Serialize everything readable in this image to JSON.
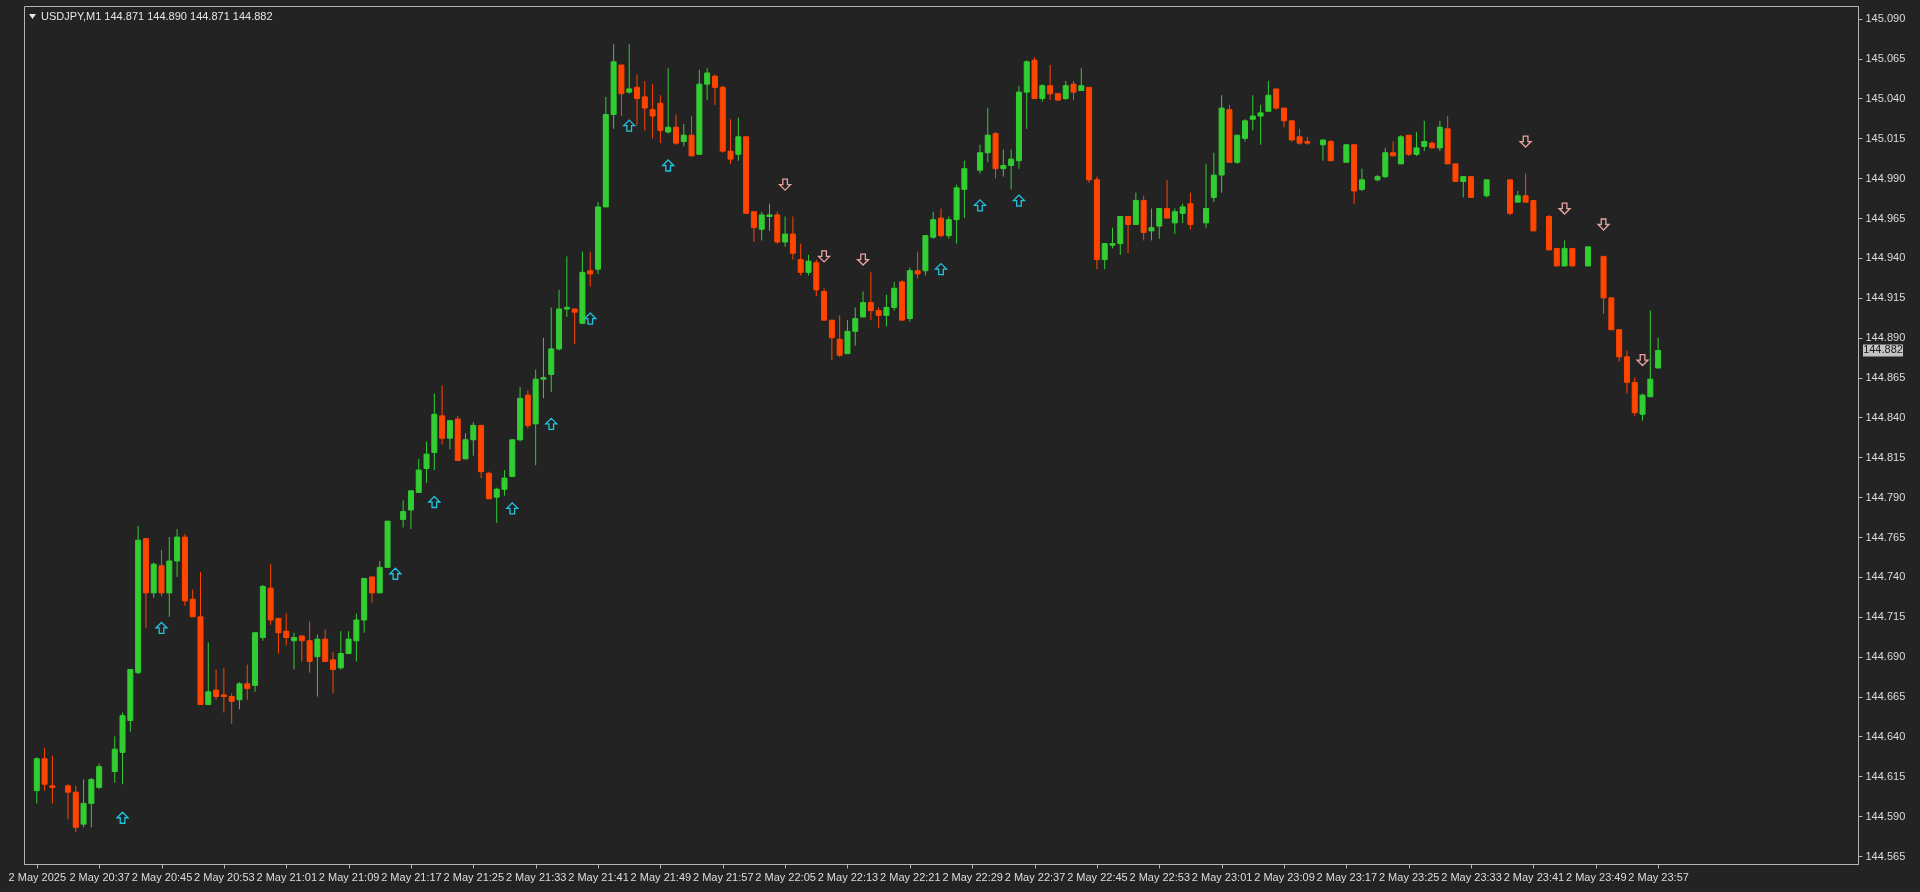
{
  "chart_data": {
    "type": "candlestick",
    "title": "USDJPY,M1 144.871 144.890 144.871 144.882",
    "x": [
      "2025-05-02T20:29",
      "2025-05-02T20:30",
      "2025-05-02T20:31",
      "2025-05-02T20:33",
      "2025-05-02T20:34",
      "2025-05-02T20:35",
      "2025-05-02T20:36",
      "2025-05-02T20:37",
      "2025-05-02T20:39",
      "2025-05-02T20:40",
      "2025-05-02T20:41",
      "2025-05-02T20:42",
      "2025-05-02T20:43",
      "2025-05-02T20:44",
      "2025-05-02T20:45",
      "2025-05-02T20:46",
      "2025-05-02T20:47",
      "2025-05-02T20:48",
      "2025-05-02T20:49",
      "2025-05-02T20:50",
      "2025-05-02T20:51",
      "2025-05-02T20:52",
      "2025-05-02T20:53",
      "2025-05-02T20:54",
      "2025-05-02T20:55",
      "2025-05-02T20:56",
      "2025-05-02T20:57",
      "2025-05-02T20:58",
      "2025-05-02T20:59",
      "2025-05-02T21:00",
      "2025-05-02T21:01",
      "2025-05-02T21:02",
      "2025-05-02T21:03",
      "2025-05-02T21:04",
      "2025-05-02T21:05",
      "2025-05-02T21:06",
      "2025-05-02T21:07",
      "2025-05-02T21:08",
      "2025-05-02T21:09",
      "2025-05-02T21:10",
      "2025-05-02T21:11",
      "2025-05-02T21:12",
      "2025-05-02T21:13",
      "2025-05-02T21:14",
      "2025-05-02T21:16",
      "2025-05-02T21:17",
      "2025-05-02T21:18",
      "2025-05-02T21:19",
      "2025-05-02T21:20",
      "2025-05-02T21:21",
      "2025-05-02T21:22",
      "2025-05-02T21:23",
      "2025-05-02T21:24",
      "2025-05-02T21:25",
      "2025-05-02T21:26",
      "2025-05-02T21:27",
      "2025-05-02T21:28",
      "2025-05-02T21:29",
      "2025-05-02T21:30",
      "2025-05-02T21:31",
      "2025-05-02T21:32",
      "2025-05-02T21:33",
      "2025-05-02T21:34",
      "2025-05-02T21:35",
      "2025-05-02T21:36",
      "2025-05-02T21:37",
      "2025-05-02T21:38",
      "2025-05-02T21:39",
      "2025-05-02T21:40",
      "2025-05-02T21:41",
      "2025-05-02T21:42",
      "2025-05-02T21:43",
      "2025-05-02T21:44",
      "2025-05-02T21:45",
      "2025-05-02T21:46",
      "2025-05-02T21:47",
      "2025-05-02T21:48",
      "2025-05-02T21:49",
      "2025-05-02T21:50",
      "2025-05-02T21:51",
      "2025-05-02T21:52",
      "2025-05-02T21:53",
      "2025-05-02T21:54",
      "2025-05-02T21:55",
      "2025-05-02T21:56",
      "2025-05-02T21:57",
      "2025-05-02T21:58",
      "2025-05-02T21:59",
      "2025-05-02T22:00",
      "2025-05-02T22:01",
      "2025-05-02T22:02",
      "2025-05-02T22:03",
      "2025-05-02T22:04",
      "2025-05-02T22:05",
      "2025-05-02T22:06",
      "2025-05-02T22:07",
      "2025-05-02T22:08",
      "2025-05-02T22:09",
      "2025-05-02T22:10",
      "2025-05-02T22:11",
      "2025-05-02T22:12",
      "2025-05-02T22:13",
      "2025-05-02T22:14",
      "2025-05-02T22:15",
      "2025-05-02T22:16",
      "2025-05-02T22:17",
      "2025-05-02T22:18",
      "2025-05-02T22:19",
      "2025-05-02T22:20",
      "2025-05-02T22:21",
      "2025-05-02T22:22",
      "2025-05-02T22:23",
      "2025-05-02T22:24",
      "2025-05-02T22:25",
      "2025-05-02T22:26",
      "2025-05-02T22:27",
      "2025-05-02T22:28",
      "2025-05-02T22:30",
      "2025-05-02T22:31",
      "2025-05-02T22:32",
      "2025-05-02T22:33",
      "2025-05-02T22:34",
      "2025-05-02T22:35",
      "2025-05-02T22:36",
      "2025-05-02T22:37",
      "2025-05-02T22:38",
      "2025-05-02T22:39",
      "2025-05-02T22:40",
      "2025-05-02T22:41",
      "2025-05-02T22:42",
      "2025-05-02T22:43",
      "2025-05-02T22:44",
      "2025-05-02T22:45",
      "2025-05-02T22:46",
      "2025-05-02T22:47",
      "2025-05-02T22:48",
      "2025-05-02T22:49",
      "2025-05-02T22:50",
      "2025-05-02T22:51",
      "2025-05-02T22:52",
      "2025-05-02T22:53",
      "2025-05-02T22:54",
      "2025-05-02T22:55",
      "2025-05-02T22:56",
      "2025-05-02T22:57",
      "2025-05-02T22:59",
      "2025-05-02T23:00",
      "2025-05-02T23:01",
      "2025-05-02T23:02",
      "2025-05-02T23:03",
      "2025-05-02T23:04",
      "2025-05-02T23:05",
      "2025-05-02T23:06",
      "2025-05-02T23:07",
      "2025-05-02T23:08",
      "2025-05-02T23:09",
      "2025-05-02T23:10",
      "2025-05-02T23:11",
      "2025-05-02T23:12",
      "2025-05-02T23:14",
      "2025-05-02T23:15",
      "2025-05-02T23:17",
      "2025-05-02T23:18",
      "2025-05-02T23:19",
      "2025-05-02T23:21",
      "2025-05-02T23:22",
      "2025-05-02T23:23",
      "2025-05-02T23:24",
      "2025-05-02T23:25",
      "2025-05-02T23:26",
      "2025-05-02T23:27",
      "2025-05-02T23:28",
      "2025-05-02T23:29",
      "2025-05-02T23:30",
      "2025-05-02T23:31",
      "2025-05-02T23:32",
      "2025-05-02T23:33",
      "2025-05-02T23:35",
      "2025-05-02T23:38",
      "2025-05-02T23:39",
      "2025-05-02T23:40",
      "2025-05-02T23:41",
      "2025-05-02T23:43",
      "2025-05-02T23:44",
      "2025-05-02T23:45",
      "2025-05-02T23:46",
      "2025-05-02T23:48",
      "2025-05-02T23:50",
      "2025-05-02T23:51",
      "2025-05-02T23:52",
      "2025-05-02T23:53",
      "2025-05-02T23:54",
      "2025-05-02T23:55",
      "2025-05-02T23:56",
      "2025-05-02T23:57"
    ],
    "ohlc": [
      [
        144.606,
        144.627,
        144.598,
        144.626
      ],
      [
        144.626,
        144.633,
        144.606,
        144.61
      ],
      [
        144.609,
        144.628,
        144.598,
        144.608
      ],
      [
        144.609,
        144.61,
        144.588,
        144.605
      ],
      [
        144.605,
        144.609,
        144.58,
        144.583
      ],
      [
        144.585,
        144.613,
        144.583,
        144.598
      ],
      [
        144.598,
        144.614,
        144.583,
        144.613
      ],
      [
        144.608,
        144.623,
        144.607,
        144.621
      ],
      [
        144.618,
        144.64,
        144.611,
        144.632
      ],
      [
        144.63,
        144.655,
        144.61,
        144.653
      ],
      [
        144.65,
        144.682,
        144.643,
        144.682
      ],
      [
        144.68,
        144.772,
        144.679,
        144.763
      ],
      [
        144.764,
        144.764,
        144.708,
        144.73
      ],
      [
        144.73,
        144.749,
        144.727,
        144.748
      ],
      [
        144.747,
        144.757,
        144.728,
        144.73
      ],
      [
        144.73,
        144.765,
        144.715,
        144.75
      ],
      [
        144.75,
        144.77,
        144.74,
        144.765
      ],
      [
        144.765,
        144.767,
        144.722,
        144.725
      ],
      [
        144.726,
        144.732,
        144.715,
        144.715
      ],
      [
        144.715,
        144.743,
        144.66,
        144.66
      ],
      [
        144.66,
        144.699,
        144.66,
        144.668
      ],
      [
        144.669,
        144.682,
        144.663,
        144.665
      ],
      [
        144.666,
        144.683,
        144.655,
        144.665
      ],
      [
        144.665,
        144.667,
        144.648,
        144.662
      ],
      [
        144.663,
        144.674,
        144.657,
        144.673
      ],
      [
        144.673,
        144.685,
        144.663,
        144.67
      ],
      [
        144.672,
        144.705,
        144.668,
        144.705
      ],
      [
        144.702,
        144.735,
        144.7,
        144.734
      ],
      [
        144.733,
        144.748,
        144.71,
        144.713
      ],
      [
        144.714,
        144.714,
        144.692,
        144.705
      ],
      [
        144.706,
        144.717,
        144.697,
        144.702
      ],
      [
        144.7,
        144.705,
        144.682,
        144.702
      ],
      [
        144.703,
        144.703,
        144.687,
        144.7
      ],
      [
        144.7,
        144.712,
        144.68,
        144.687
      ],
      [
        144.69,
        144.704,
        144.665,
        144.701
      ],
      [
        144.701,
        144.707,
        144.687,
        144.687
      ],
      [
        144.688,
        144.693,
        144.667,
        144.682
      ],
      [
        144.683,
        144.706,
        144.682,
        144.692
      ],
      [
        144.692,
        144.706,
        144.692,
        144.701
      ],
      [
        144.7,
        144.717,
        144.687,
        144.713
      ],
      [
        144.713,
        144.739,
        144.705,
        144.739
      ],
      [
        144.74,
        144.74,
        144.724,
        144.73
      ],
      [
        144.73,
        144.75,
        144.73,
        144.746
      ],
      [
        144.746,
        144.775,
        144.746,
        144.775
      ],
      [
        144.776,
        144.788,
        144.771,
        144.781
      ],
      [
        144.782,
        144.794,
        144.77,
        144.794
      ],
      [
        144.793,
        144.814,
        144.793,
        144.807
      ],
      [
        144.808,
        144.825,
        144.799,
        144.817
      ],
      [
        144.818,
        144.855,
        144.807,
        144.842
      ],
      [
        144.841,
        144.86,
        144.823,
        144.827
      ],
      [
        144.827,
        144.838,
        144.82,
        144.838
      ],
      [
        144.839,
        144.841,
        144.813,
        144.813
      ],
      [
        144.814,
        144.83,
        144.814,
        144.826
      ],
      [
        144.826,
        144.837,
        144.816,
        144.835
      ],
      [
        144.835,
        144.835,
        144.802,
        144.806
      ],
      [
        144.805,
        144.806,
        144.789,
        144.789
      ],
      [
        144.79,
        144.796,
        144.774,
        144.795
      ],
      [
        144.795,
        144.807,
        144.791,
        144.802
      ],
      [
        144.803,
        144.826,
        144.803,
        144.826
      ],
      [
        144.826,
        144.859,
        144.825,
        144.852
      ],
      [
        144.854,
        144.857,
        144.833,
        144.835
      ],
      [
        144.836,
        144.87,
        144.81,
        144.864
      ],
      [
        144.864,
        144.89,
        144.852,
        144.865
      ],
      [
        144.867,
        144.909,
        144.856,
        144.883
      ],
      [
        144.883,
        144.92,
        144.882,
        144.908
      ],
      [
        144.908,
        144.941,
        144.903,
        144.909
      ],
      [
        144.908,
        144.908,
        144.886,
        144.906
      ],
      [
        144.899,
        144.944,
        144.899,
        144.931
      ],
      [
        144.932,
        144.944,
        144.922,
        144.93
      ],
      [
        144.933,
        144.975,
        144.93,
        144.972
      ],
      [
        144.972,
        145.041,
        144.972,
        145.03
      ],
      [
        145.03,
        145.074,
        145.021,
        145.063
      ],
      [
        145.061,
        145.061,
        145.029,
        145.043
      ],
      [
        145.044,
        145.074,
        145.043,
        145.046
      ],
      [
        145.047,
        145.055,
        145.023,
        145.04
      ],
      [
        145.041,
        145.051,
        145.02,
        145.034
      ],
      [
        145.033,
        145.049,
        145.015,
        145.029
      ],
      [
        145.037,
        145.042,
        145.012,
        145.02
      ],
      [
        145.019,
        145.059,
        145.018,
        145.022
      ],
      [
        145.022,
        145.03,
        145.011,
        145.012
      ],
      [
        145.013,
        145.024,
        145.01,
        145.017
      ],
      [
        145.017,
        145.029,
        145.004,
        145.004
      ],
      [
        145.005,
        145.058,
        145.005,
        145.049
      ],
      [
        145.049,
        145.059,
        145.039,
        145.056
      ],
      [
        145.054,
        145.055,
        145.036,
        145.047
      ],
      [
        145.047,
        145.048,
        145.006,
        145.007
      ],
      [
        145.007,
        145.027,
        144.999,
        145.002
      ],
      [
        145.005,
        145.028,
        145.001,
        145.016
      ],
      [
        145.016,
        145.016,
        144.968,
        144.968
      ],
      [
        144.969,
        144.969,
        144.95,
        144.959
      ],
      [
        144.958,
        144.969,
        144.951,
        144.967
      ],
      [
        144.966,
        144.974,
        144.957,
        144.967
      ],
      [
        144.967,
        144.969,
        144.949,
        144.95
      ],
      [
        144.95,
        144.966,
        144.947,
        144.955
      ],
      [
        144.955,
        144.966,
        144.939,
        144.943
      ],
      [
        144.939,
        144.949,
        144.929,
        144.931
      ],
      [
        144.931,
        144.942,
        144.929,
        144.938
      ],
      [
        144.937,
        144.939,
        144.916,
        144.92
      ],
      [
        144.919,
        144.921,
        144.901,
        144.901
      ],
      [
        144.901,
        144.901,
        144.876,
        144.89
      ],
      [
        144.889,
        144.904,
        144.878,
        144.879
      ],
      [
        144.88,
        144.901,
        144.88,
        144.894
      ],
      [
        144.894,
        144.909,
        144.885,
        144.902
      ],
      [
        144.903,
        144.919,
        144.903,
        144.912
      ],
      [
        144.912,
        144.931,
        144.901,
        144.907
      ],
      [
        144.907,
        144.909,
        144.896,
        144.904
      ],
      [
        144.904,
        144.917,
        144.897,
        144.909
      ],
      [
        144.909,
        144.925,
        144.907,
        144.921
      ],
      [
        144.925,
        144.926,
        144.901,
        144.901
      ],
      [
        144.902,
        144.934,
        144.9,
        144.932
      ],
      [
        144.932,
        144.944,
        144.927,
        144.93
      ],
      [
        144.932,
        144.954,
        144.929,
        144.954
      ],
      [
        144.953,
        144.969,
        144.952,
        144.964
      ],
      [
        144.965,
        144.971,
        144.953,
        144.954
      ],
      [
        144.954,
        144.966,
        144.952,
        144.964
      ],
      [
        144.964,
        144.986,
        144.949,
        144.984
      ],
      [
        144.983,
        145.001,
        144.965,
        144.996
      ],
      [
        144.995,
        145.011,
        144.993,
        145.006
      ],
      [
        145.006,
        145.034,
        145.0,
        145.017
      ],
      [
        145.018,
        145.019,
        144.99,
        144.996
      ],
      [
        144.996,
        145.008,
        144.991,
        144.998
      ],
      [
        144.998,
        145.008,
        144.983,
        145.002
      ],
      [
        145.001,
        145.048,
        144.996,
        145.044
      ],
      [
        145.044,
        145.064,
        145.021,
        145.063
      ],
      [
        145.064,
        145.066,
        145.04,
        145.04
      ],
      [
        145.04,
        145.049,
        145.038,
        145.048
      ],
      [
        145.048,
        145.061,
        145.039,
        145.043
      ],
      [
        145.043,
        145.043,
        145.039,
        145.039
      ],
      [
        145.04,
        145.051,
        145.039,
        145.048
      ],
      [
        145.049,
        145.051,
        145.039,
        145.044
      ],
      [
        145.045,
        145.059,
        145.045,
        145.048
      ],
      [
        145.047,
        145.047,
        144.987,
        144.989
      ],
      [
        144.989,
        144.991,
        144.933,
        144.939
      ],
      [
        144.939,
        144.949,
        144.933,
        144.949
      ],
      [
        144.948,
        144.959,
        144.946,
        144.949
      ],
      [
        144.949,
        144.966,
        144.942,
        144.966
      ],
      [
        144.966,
        144.966,
        144.943,
        144.961
      ],
      [
        144.961,
        144.981,
        144.961,
        144.976
      ],
      [
        144.976,
        144.979,
        144.951,
        144.956
      ],
      [
        144.957,
        144.971,
        144.951,
        144.959
      ],
      [
        144.96,
        144.971,
        144.952,
        144.971
      ],
      [
        144.971,
        144.989,
        144.965,
        144.965
      ],
      [
        144.962,
        144.971,
        144.955,
        144.969
      ],
      [
        144.968,
        144.974,
        144.962,
        144.972
      ],
      [
        144.974,
        144.981,
        144.958,
        144.961
      ],
      [
        144.962,
        144.999,
        144.959,
        144.971
      ],
      [
        144.978,
        145.006,
        144.975,
        144.992
      ],
      [
        144.992,
        145.042,
        144.981,
        145.034
      ],
      [
        145.033,
        145.036,
        145.0,
        145.0
      ],
      [
        145.0,
        145.017,
        144.999,
        145.017
      ],
      [
        145.015,
        145.027,
        145.013,
        145.026
      ],
      [
        145.027,
        145.042,
        145.02,
        145.029
      ],
      [
        145.029,
        145.036,
        145.011,
        145.031
      ],
      [
        145.032,
        145.051,
        145.032,
        145.042
      ],
      [
        145.046,
        145.046,
        145.033,
        145.034
      ],
      [
        145.034,
        145.034,
        145.022,
        145.026
      ],
      [
        145.026,
        145.026,
        145.013,
        145.014
      ],
      [
        145.016,
        145.021,
        145.011,
        145.012
      ],
      [
        145.013,
        145.016,
        145.011,
        145.012
      ],
      [
        145.011,
        145.014,
        145.001,
        145.014
      ],
      [
        145.013,
        145.014,
        145.001,
        145.001
      ],
      [
        145.0,
        145.011,
        145.0,
        145.011
      ],
      [
        145.011,
        145.011,
        144.974,
        144.982
      ],
      [
        144.983,
        144.996,
        144.982,
        144.989
      ],
      [
        144.989,
        144.992,
        144.988,
        144.991
      ],
      [
        144.991,
        145.009,
        144.99,
        145.006
      ],
      [
        145.006,
        145.013,
        145.004,
        145.004
      ],
      [
        144.999,
        145.017,
        144.999,
        145.016
      ],
      [
        145.017,
        145.017,
        145.004,
        145.005
      ],
      [
        145.005,
        145.019,
        145.004,
        145.009
      ],
      [
        145.01,
        145.026,
        145.007,
        145.013
      ],
      [
        145.012,
        145.013,
        145.009,
        145.009
      ],
      [
        145.009,
        145.026,
        145.007,
        145.022
      ],
      [
        145.021,
        145.029,
        144.999,
        144.999
      ],
      [
        144.999,
        144.999,
        144.988,
        144.988
      ],
      [
        144.988,
        144.991,
        144.978,
        144.991
      ],
      [
        144.991,
        144.991,
        144.978,
        144.978
      ],
      [
        144.979,
        144.989,
        144.978,
        144.989
      ],
      [
        144.989,
        144.989,
        144.967,
        144.968
      ],
      [
        144.975,
        144.982,
        144.975,
        144.979
      ],
      [
        144.979,
        144.993,
        144.975,
        144.975
      ],
      [
        144.976,
        144.976,
        144.957,
        144.957
      ],
      [
        144.966,
        144.967,
        144.945,
        144.945
      ],
      [
        144.946,
        144.946,
        144.935,
        144.935
      ],
      [
        144.935,
        144.951,
        144.935,
        144.946
      ],
      [
        144.946,
        144.946,
        144.935,
        144.935
      ],
      [
        144.935,
        144.947,
        144.935,
        144.947
      ],
      [
        144.941,
        144.941,
        144.905,
        144.915
      ],
      [
        144.915,
        144.915,
        144.895,
        144.895
      ],
      [
        144.895,
        144.895,
        144.875,
        144.878
      ],
      [
        144.878,
        144.882,
        144.855,
        144.862
      ],
      [
        144.862,
        144.865,
        144.841,
        144.843
      ],
      [
        144.842,
        144.855,
        144.838,
        144.854
      ],
      [
        144.853,
        144.907,
        144.853,
        144.864
      ],
      [
        144.871,
        144.89,
        144.871,
        144.882
      ]
    ],
    "colors": [
      "#32cd32",
      "#ff4500",
      "#ff4500",
      "#ff4500",
      "#ff4500",
      "#32cd32",
      "#32cd32",
      "#32cd32",
      "#32cd32",
      "#32cd32",
      "#32cd32",
      "#32cd32",
      "#ff4500",
      "#32cd32",
      "#ff4500",
      "#32cd32",
      "#32cd32",
      "#ff4500",
      "#ff4500",
      "#ff4500",
      "#32cd32",
      "#ff4500",
      "#ff4500",
      "#ff4500",
      "#32cd32",
      "#ff4500",
      "#32cd32",
      "#32cd32",
      "#ff4500",
      "#ff4500",
      "#ff4500",
      "#32cd32",
      "#ff4500",
      "#ff4500",
      "#32cd32",
      "#ff4500",
      "#ff4500",
      "#32cd32",
      "#32cd32",
      "#32cd32",
      "#32cd32",
      "#ff4500",
      "#32cd32",
      "#32cd32",
      "#32cd32",
      "#32cd32",
      "#32cd32",
      "#32cd32",
      "#32cd32",
      "#ff4500",
      "#32cd32",
      "#ff4500",
      "#32cd32",
      "#32cd32",
      "#ff4500",
      "#ff4500",
      "#32cd32",
      "#32cd32",
      "#32cd32",
      "#32cd32",
      "#ff4500",
      "#32cd32",
      "#32cd32",
      "#32cd32",
      "#32cd32",
      "#32cd32",
      "#ff4500",
      "#32cd32",
      "#ff4500",
      "#32cd32",
      "#32cd32",
      "#32cd32",
      "#ff4500",
      "#32cd32",
      "#ff4500",
      "#ff4500",
      "#ff4500",
      "#ff4500",
      "#32cd32",
      "#ff4500",
      "#32cd32",
      "#ff4500",
      "#32cd32",
      "#32cd32",
      "#ff4500",
      "#ff4500",
      "#ff4500",
      "#32cd32",
      "#ff4500",
      "#ff4500",
      "#32cd32",
      "#32cd32",
      "#ff4500",
      "#32cd32",
      "#ff4500",
      "#ff4500",
      "#32cd32",
      "#ff4500",
      "#ff4500",
      "#ff4500",
      "#ff4500",
      "#32cd32",
      "#32cd32",
      "#32cd32",
      "#ff4500",
      "#ff4500",
      "#32cd32",
      "#32cd32",
      "#ff4500",
      "#32cd32",
      "#ff4500",
      "#32cd32",
      "#32cd32",
      "#ff4500",
      "#32cd32",
      "#32cd32",
      "#32cd32",
      "#32cd32",
      "#32cd32",
      "#ff4500",
      "#32cd32",
      "#32cd32",
      "#32cd32",
      "#32cd32",
      "#ff4500",
      "#32cd32",
      "#ff4500",
      "#ff4500",
      "#32cd32",
      "#ff4500",
      "#32cd32",
      "#ff4500",
      "#ff4500",
      "#32cd32",
      "#32cd32",
      "#32cd32",
      "#ff4500",
      "#32cd32",
      "#ff4500",
      "#32cd32",
      "#32cd32",
      "#ff4500",
      "#32cd32",
      "#32cd32",
      "#ff4500",
      "#32cd32",
      "#32cd32",
      "#32cd32",
      "#ff4500",
      "#32cd32",
      "#32cd32",
      "#32cd32",
      "#32cd32",
      "#32cd32",
      "#ff4500",
      "#ff4500",
      "#ff4500",
      "#ff4500",
      "#ff4500",
      "#32cd32",
      "#ff4500",
      "#32cd32",
      "#ff4500",
      "#32cd32",
      "#32cd32",
      "#32cd32",
      "#ff4500",
      "#32cd32",
      "#ff4500",
      "#32cd32",
      "#32cd32",
      "#ff4500",
      "#32cd32",
      "#ff4500",
      "#ff4500",
      "#32cd32",
      "#ff4500",
      "#32cd32",
      "#ff4500",
      "#32cd32",
      "#ff4500",
      "#ff4500",
      "#ff4500",
      "#ff4500",
      "#32cd32",
      "#ff4500",
      "#32cd32",
      "#ff4500",
      "#ff4500",
      "#ff4500",
      "#ff4500",
      "#ff4500",
      "#32cd32",
      "#32cd32",
      "#32cd32"
    ],
    "series": [
      {
        "type": "scatter",
        "color": "#22c4e0",
        "marker": "triangle",
        "x": [
          "2025-05-02T20:40",
          "2025-05-02T20:45",
          "2025-05-02T21:15",
          "2025-05-02T21:20",
          "2025-05-02T21:30",
          "2025-05-02T21:35",
          "2025-05-02T21:40",
          "2025-05-02T21:45",
          "2025-05-02T21:50",
          "2025-05-02T22:25",
          "2025-05-02T22:30",
          "2025-05-02T22:35"
        ],
        "values": [
          144.589,
          144.708,
          144.742,
          144.787,
          144.783,
          144.836,
          144.902,
          145.023,
          144.998,
          144.933,
          144.973,
          144.976
        ]
      },
      {
        "type": "scatter",
        "color": "#e8a49e",
        "marker": "triangle-down",
        "x": [
          "2025-05-02T22:05",
          "2025-05-02T22:10",
          "2025-05-02T22:15",
          "2025-05-02T23:40",
          "2025-05-02T23:45",
          "2025-05-02T23:50",
          "2025-05-02T23:55"
        ],
        "values": [
          144.986,
          144.941,
          144.939,
          145.013,
          144.971,
          144.961,
          144.876
        ]
      }
    ],
    "annotations": [
      "144.882"
    ],
    "xlim": [
      "2025-05-02T20:28",
      "2025-05-03T00:22"
    ],
    "xticks": [
      {
        "value": "2025-05-02T20:29",
        "label": "2 May 2025"
      },
      {
        "value": "2025-05-02T20:37",
        "label": "2 May 20:37"
      },
      {
        "value": "2025-05-02T20:45",
        "label": "2 May 20:45"
      },
      {
        "value": "2025-05-02T20:53",
        "label": "2 May 20:53"
      },
      {
        "value": "2025-05-02T21:01",
        "label": "2 May 21:01"
      },
      {
        "value": "2025-05-02T21:09",
        "label": "2 May 21:09"
      },
      {
        "value": "2025-05-02T21:17",
        "label": "2 May 21:17"
      },
      {
        "value": "2025-05-02T21:25",
        "label": "2 May 21:25"
      },
      {
        "value": "2025-05-02T21:33",
        "label": "2 May 21:33"
      },
      {
        "value": "2025-05-02T21:41",
        "label": "2 May 21:41"
      },
      {
        "value": "2025-05-02T21:49",
        "label": "2 May 21:49"
      },
      {
        "value": "2025-05-02T21:57",
        "label": "2 May 21:57"
      },
      {
        "value": "2025-05-02T22:05",
        "label": "2 May 22:05"
      },
      {
        "value": "2025-05-02T22:13",
        "label": "2 May 22:13"
      },
      {
        "value": "2025-05-02T22:21",
        "label": "2 May 22:21"
      },
      {
        "value": "2025-05-02T22:29",
        "label": "2 May 22:29"
      },
      {
        "value": "2025-05-02T22:37",
        "label": "2 May 22:37"
      },
      {
        "value": "2025-05-02T22:45",
        "label": "2 May 22:45"
      },
      {
        "value": "2025-05-02T22:53",
        "label": "2 May 22:53"
      },
      {
        "value": "2025-05-02T23:01",
        "label": "2 May 23:01"
      },
      {
        "value": "2025-05-02T23:09",
        "label": "2 May 23:09"
      },
      {
        "value": "2025-05-02T23:17",
        "label": "2 May 23:17"
      },
      {
        "value": "2025-05-02T23:25",
        "label": "2 May 23:25"
      },
      {
        "value": "2025-05-02T23:33",
        "label": "2 May 23:33"
      },
      {
        "value": "2025-05-02T23:41",
        "label": "2 May 23:41"
      },
      {
        "value": "2025-05-02T23:49",
        "label": "2 May 23:49"
      },
      {
        "value": "2025-05-02T23:57",
        "label": "2 May 23:57"
      }
    ],
    "ylim": [
      144.56,
      145.098
    ],
    "yticks": [
      144.565,
      {
        "value": 144.59,
        "label": "144.590"
      },
      144.615,
      {
        "value": 144.64,
        "label": "144.640"
      },
      144.665,
      {
        "value": 144.69,
        "label": "144.690"
      },
      144.715,
      {
        "value": 144.74,
        "label": "144.740"
      },
      144.765,
      {
        "value": 144.79,
        "label": "144.790"
      },
      144.815,
      {
        "value": 144.84,
        "label": "144.840"
      },
      144.865,
      {
        "value": 144.89,
        "label": "144.890"
      },
      144.915,
      {
        "value": 144.94,
        "label": "144.940"
      },
      144.965,
      {
        "value": 144.99,
        "label": "144.990"
      },
      145.015,
      {
        "value": 145.04,
        "label": "145.040"
      },
      145.065,
      {
        "value": 145.09,
        "label": "145.090"
      }
    ]
  }
}
